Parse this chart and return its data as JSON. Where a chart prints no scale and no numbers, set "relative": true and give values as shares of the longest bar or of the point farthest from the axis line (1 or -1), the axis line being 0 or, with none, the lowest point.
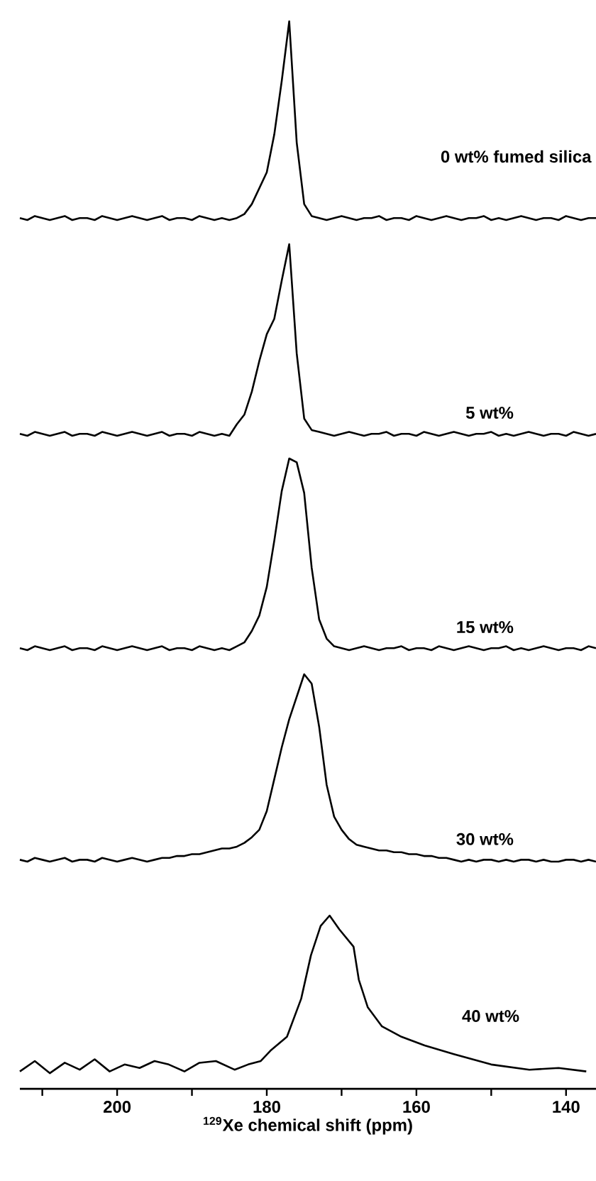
{
  "chart_data": [
    {
      "type": "line",
      "relative": true,
      "categories": [
        null,
        null,
        null,
        null,
        null,
        null,
        null,
        null,
        null,
        null,
        null,
        null,
        null,
        null,
        null,
        null,
        null,
        null,
        null,
        null,
        null,
        null,
        null,
        null,
        null,
        null,
        null,
        null,
        null,
        null,
        null,
        null,
        null,
        null,
        null,
        null,
        null,
        null,
        null,
        null,
        null,
        null,
        null,
        null,
        null,
        null,
        null,
        null,
        null,
        null,
        null,
        null,
        null,
        null,
        null,
        null,
        null,
        null,
        null,
        null,
        null,
        null,
        null,
        null,
        null,
        null,
        null,
        null,
        null,
        null,
        null,
        null,
        null,
        null,
        null,
        null,
        null,
        null
      ],
      "series": [
        {
          "name": "0 wt% fumed silica",
          "color": "#000000",
          "values": [
            0.01,
            0.0,
            0.02,
            0.01,
            0.0,
            0.01,
            0.02,
            0.0,
            0.01,
            0.01,
            0.0,
            0.02,
            0.01,
            0.0,
            0.01,
            0.02,
            0.01,
            0.0,
            0.01,
            0.02,
            0.0,
            0.01,
            0.01,
            0.0,
            0.02,
            0.01,
            0.0,
            0.01,
            0.0,
            0.01,
            0.03,
            0.08,
            0.16,
            0.24,
            0.43,
            0.7,
            1.0,
            0.39,
            0.08,
            0.02,
            0.01,
            0.0,
            0.01,
            0.02,
            0.01,
            0.0,
            0.01,
            0.01,
            0.02,
            0.0,
            0.01,
            0.01,
            0.0,
            0.02,
            0.01,
            0.0,
            0.01,
            0.02,
            0.01,
            0.0,
            0.01,
            0.01,
            0.02,
            0.0,
            0.01,
            0.0,
            0.01,
            0.02,
            0.01,
            0.0,
            0.01,
            0.01,
            0.0,
            0.02,
            0.01,
            0.0,
            0.01,
            0.01
          ]
        }
      ]
    },
    {
      "type": "line",
      "relative": true,
      "categories": [
        null,
        null,
        null,
        null,
        null,
        null,
        null,
        null,
        null,
        null,
        null,
        null,
        null,
        null,
        null,
        null,
        null,
        null,
        null,
        null,
        null,
        null,
        null,
        null,
        null,
        null,
        null,
        null,
        null,
        null,
        null,
        null,
        null,
        null,
        null,
        null,
        null,
        null,
        null,
        null,
        null,
        null,
        null,
        null,
        null,
        null,
        null,
        null,
        null,
        null,
        null,
        null,
        null,
        null,
        null,
        null,
        null,
        null,
        null,
        null,
        null,
        null,
        null,
        null,
        null,
        null,
        null,
        null,
        null,
        null,
        null,
        null,
        null,
        null,
        null,
        null,
        null,
        null
      ],
      "series": [
        {
          "name": "5 wt%",
          "color": "#000000",
          "values": [
            0.01,
            0.0,
            0.02,
            0.01,
            0.0,
            0.01,
            0.02,
            0.0,
            0.01,
            0.01,
            0.0,
            0.02,
            0.01,
            0.0,
            0.01,
            0.02,
            0.01,
            0.0,
            0.01,
            0.02,
            0.0,
            0.01,
            0.01,
            0.0,
            0.02,
            0.01,
            0.0,
            0.01,
            0.0,
            0.06,
            0.11,
            0.23,
            0.39,
            0.53,
            0.61,
            0.81,
            1.0,
            0.43,
            0.09,
            0.03,
            0.02,
            0.01,
            0.0,
            0.01,
            0.02,
            0.01,
            0.0,
            0.01,
            0.01,
            0.02,
            0.0,
            0.01,
            0.01,
            0.0,
            0.02,
            0.01,
            0.0,
            0.01,
            0.02,
            0.01,
            0.0,
            0.01,
            0.01,
            0.02,
            0.0,
            0.01,
            0.0,
            0.01,
            0.02,
            0.01,
            0.0,
            0.01,
            0.01,
            0.0,
            0.02,
            0.01,
            0.0,
            0.01
          ]
        }
      ]
    },
    {
      "type": "line",
      "relative": true,
      "categories": [
        null,
        null,
        null,
        null,
        null,
        null,
        null,
        null,
        null,
        null,
        null,
        null,
        null,
        null,
        null,
        null,
        null,
        null,
        null,
        null,
        null,
        null,
        null,
        null,
        null,
        null,
        null,
        null,
        null,
        null,
        null,
        null,
        null,
        null,
        null,
        null,
        null,
        null,
        null,
        null,
        null,
        null,
        null,
        null,
        null,
        null,
        null,
        null,
        null,
        null,
        null,
        null,
        null,
        null,
        null,
        null,
        null,
        null,
        null,
        null,
        null,
        null,
        null,
        null,
        null,
        null,
        null,
        null,
        null,
        null,
        null,
        null,
        null,
        null,
        null,
        null,
        null,
        null
      ],
      "series": [
        {
          "name": "15 wt%",
          "color": "#000000",
          "values": [
            0.01,
            0.0,
            0.02,
            0.01,
            0.0,
            0.01,
            0.02,
            0.0,
            0.01,
            0.01,
            0.0,
            0.02,
            0.01,
            0.0,
            0.01,
            0.02,
            0.01,
            0.0,
            0.01,
            0.02,
            0.0,
            0.01,
            0.01,
            0.0,
            0.02,
            0.01,
            0.0,
            0.01,
            0.0,
            0.02,
            0.04,
            0.1,
            0.18,
            0.33,
            0.57,
            0.83,
            1.0,
            0.98,
            0.82,
            0.43,
            0.16,
            0.06,
            0.02,
            0.01,
            0.0,
            0.01,
            0.02,
            0.01,
            0.0,
            0.01,
            0.01,
            0.02,
            0.0,
            0.01,
            0.01,
            0.0,
            0.02,
            0.01,
            0.0,
            0.01,
            0.02,
            0.01,
            0.0,
            0.01,
            0.01,
            0.02,
            0.0,
            0.01,
            0.0,
            0.01,
            0.02,
            0.01,
            0.0,
            0.01,
            0.01,
            0.0,
            0.02,
            0.01
          ]
        }
      ]
    },
    {
      "type": "line",
      "relative": true,
      "categories": [
        null,
        null,
        null,
        null,
        null,
        null,
        null,
        null,
        null,
        null,
        null,
        null,
        null,
        null,
        null,
        null,
        null,
        null,
        null,
        null,
        null,
        null,
        null,
        null,
        null,
        null,
        null,
        null,
        null,
        null,
        null,
        null,
        null,
        null,
        null,
        null,
        null,
        null,
        null,
        null,
        null,
        null,
        null,
        null,
        null,
        null,
        null,
        null,
        null,
        null,
        null,
        null,
        null,
        null,
        null,
        null,
        null,
        null,
        null,
        null,
        null,
        null,
        null,
        null,
        null,
        null,
        null,
        null,
        null,
        null,
        null,
        null,
        null,
        null,
        null,
        null,
        null,
        null
      ],
      "series": [
        {
          "name": "30 wt%",
          "color": "#000000",
          "values": [
            0.01,
            0.0,
            0.02,
            0.01,
            0.0,
            0.01,
            0.02,
            0.0,
            0.01,
            0.01,
            0.0,
            0.02,
            0.01,
            0.0,
            0.01,
            0.02,
            0.01,
            0.0,
            0.01,
            0.02,
            0.02,
            0.03,
            0.03,
            0.04,
            0.04,
            0.05,
            0.06,
            0.07,
            0.07,
            0.08,
            0.1,
            0.13,
            0.17,
            0.27,
            0.44,
            0.61,
            0.76,
            0.88,
            1.0,
            0.95,
            0.72,
            0.41,
            0.24,
            0.17,
            0.12,
            0.09,
            0.08,
            0.07,
            0.06,
            0.06,
            0.05,
            0.05,
            0.04,
            0.04,
            0.03,
            0.03,
            0.02,
            0.02,
            0.01,
            0.0,
            0.01,
            0.0,
            0.01,
            0.01,
            0.0,
            0.01,
            0.0,
            0.01,
            0.01,
            0.0,
            0.01,
            0.0,
            0.0,
            0.01,
            0.01,
            0.0,
            0.01,
            0.0
          ]
        }
      ]
    },
    {
      "type": "line",
      "relative": true,
      "xlim": [
        213,
        136
      ],
      "xlabel": "$^{129}$Xe chemical shift (ppm)",
      "tick_labels": "x",
      "xticks": [
        {
          "value": 210,
          "label": null
        },
        200,
        {
          "value": 190,
          "label": null
        },
        180,
        {
          "value": 170,
          "label": null
        },
        160,
        {
          "value": 150,
          "label": null
        },
        140
      ],
      "series": [
        {
          "name": "40 wt%",
          "color": "#000000",
          "x": [
            213,
            211,
            209,
            207,
            205,
            203,
            201,
            199,
            197,
            195,
            193.1,
            191,
            189,
            186.8,
            184.3,
            182.5,
            180.8,
            179.5,
            177.3,
            175.4,
            174.1,
            172.8,
            171.6,
            170.3,
            168.4,
            167.7,
            166.5,
            164.6,
            162.0,
            158.9,
            155.0,
            150.0,
            144.9,
            141,
            137.3
          ],
          "values": [
            0.1,
            0.16,
            0.09,
            0.15,
            0.11,
            0.17,
            0.1,
            0.14,
            0.12,
            0.16,
            0.14,
            0.1,
            0.15,
            0.16,
            0.11,
            0.14,
            0.16,
            0.22,
            0.3,
            0.52,
            0.77,
            0.94,
            1.0,
            0.92,
            0.82,
            0.63,
            0.47,
            0.36,
            0.3,
            0.25,
            0.2,
            0.14,
            0.11,
            0.12,
            0.1
          ]
        }
      ]
    }
  ]
}
